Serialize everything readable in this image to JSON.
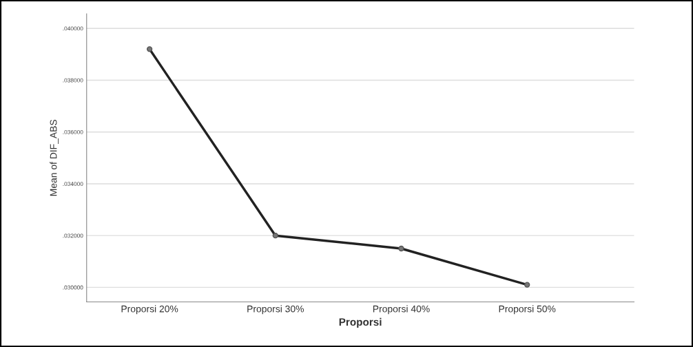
{
  "chart_data": {
    "type": "line",
    "xlabel": "Proporsi",
    "ylabel": "Mean of DIF_ABS",
    "categories": [
      "Proporsi 20%",
      "Proporsi 30%",
      "Proporsi 40%",
      "Proporsi 50%"
    ],
    "series": [
      {
        "color": "#222222",
        "values": [
          0.0392,
          0.032,
          0.0315,
          0.0301
        ]
      }
    ],
    "ylim": [
      0.02944,
      0.04056
    ],
    "yticks": [
      {
        "value": 0.03,
        "label": ".030000"
      },
      {
        "value": 0.032,
        "label": ".032000"
      },
      {
        "value": 0.034,
        "label": ".034000"
      },
      {
        "value": 0.036,
        "label": ".036000"
      },
      {
        "value": 0.038,
        "label": ".038000"
      },
      {
        "value": 0.04,
        "label": ".040000"
      }
    ],
    "grid": "y",
    "marker": "circle",
    "line_style": "solid"
  }
}
